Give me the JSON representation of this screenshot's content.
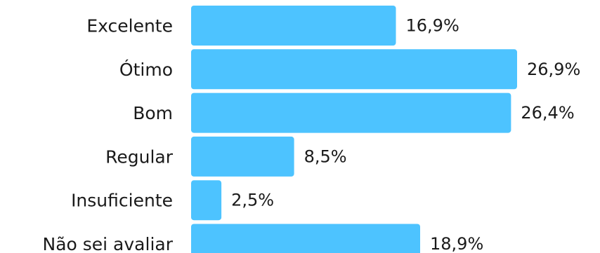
{
  "chart_data": {
    "type": "bar",
    "orientation": "horizontal",
    "categories": [
      "Excelente",
      "Ótimo",
      "Bom",
      "Regular",
      "Insuficiente",
      "Não sei avaliar"
    ],
    "values": [
      16.9,
      26.9,
      26.4,
      8.5,
      2.5,
      18.9
    ],
    "value_labels": [
      "16,9%",
      "26,9%",
      "26,4%",
      "8,5%",
      "2,5%",
      "18,9%"
    ],
    "title": "",
    "xlabel": "",
    "ylabel": "",
    "xlim": [
      0,
      26.9
    ],
    "grid": false,
    "legend": "none",
    "colors": {
      "bar": "#4DC3FF",
      "text": "#1a1a1a",
      "background": "#ffffff"
    }
  }
}
